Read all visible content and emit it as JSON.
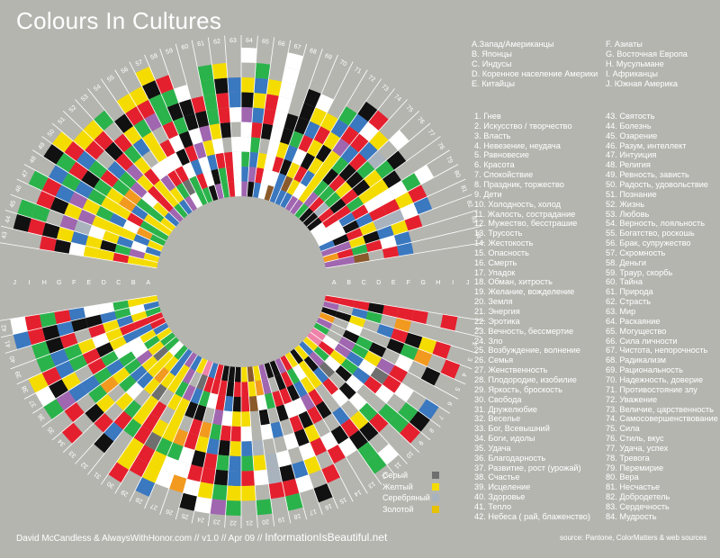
{
  "title": "Colours In Cultures",
  "cultures": [
    "A.Запад/Американцы",
    "B. Японцы",
    "C. Индусы",
    "D. Коренное население Америки",
    "E. Китайцы",
    "F. Азиаты",
    "G. Восточная Европа",
    "H.  Мусульмане",
    "I.   Африканцы",
    "J. Южная Америка"
  ],
  "culture_letters": [
    "A",
    "B",
    "C",
    "D",
    "E",
    "F",
    "G",
    "H",
    "I",
    "J"
  ],
  "meanings": [
    "1. Гнев",
    "2. Искусство / творчество",
    "3. Власть",
    "4. Невезение, неудача",
    "5. Равновесие",
    "6. Красота",
    "7. Спокойствие",
    "8. Праздник, торжество",
    "9. Дети",
    "10. Холодность, холод",
    "11. Жалость, сострадание",
    "12. Мужество, бесстрашие",
    "13. Трусость",
    "14. Жестокость",
    "15. Опасность",
    "16. Смерть",
    "17. Упадок",
    "18. Обман, хитрость",
    "19. Желание, вожделение",
    "20. Земля",
    "21. Энергия",
    "22. Эротика",
    "23. Вечность, бессмертие",
    "24. Зло",
    "25. Возбуждение, волнение",
    "26. Семья",
    "27. Женственность",
    "28. Плодородие, изобилие",
    "29. Яркость, броскость",
    "30. Свобода",
    "31. Дружелюбие",
    "32. Веселье",
    "33. Бог, Всевышний",
    "34. Боги, идолы",
    "35. Удача",
    "36. Благодарность",
    "37. Развитие, рост (урожай)",
    "38. Счастье",
    "39. Исцеление",
    "40. Здоровье",
    "41. Тепло",
    "42. Небеса ( рай, блаженство)",
    "43. Святость",
    "44. Болезнь",
    "45. Озарение",
    "46. Разум, интеллект",
    "47. Интуиция",
    "48. Религия",
    "49. Ревность, зависть",
    "50. Радость, удовольствие",
    "51. Познание",
    "52. Жизнь",
    "53. Любовь",
    "54. Верность, лояльность",
    "55. Богатство, роскошь",
    "56. Брак, супружество",
    "57. Скромность",
    "58. Деньги",
    "59. Траур, скорбь",
    "60. Тайна",
    "61. Природа",
    "62. Страсть",
    "63. Мир",
    "64. Раскаяние",
    "65.  Могущество",
    "66. Сила личности",
    "67. Чистота, непорочность",
    "68. Радикализм",
    "69. Рациональность",
    "70. Надежность, доверие",
    "71. Противостояние злу",
    "72. Уважение",
    "73. Величие, царственность",
    "74. Самосовершенствование",
    "75. Сила",
    "76. Стиль, вкус",
    "77. Удача, успех",
    "78. Тревога",
    "79. Перемирие",
    "80. Вера",
    "81. Несчастье",
    "82. Добродетель",
    "83. Сердечность",
    "84. Мудрость"
  ],
  "legend": [
    {
      "label": "Серый",
      "color": "#6f6f6f"
    },
    {
      "label": "Желтый",
      "color": "#f5dc00"
    },
    {
      "label": "Серебряный",
      "color": "#a9b3bd"
    },
    {
      "label": "Золотой",
      "color": "#e8c200"
    }
  ],
  "footer": {
    "credit": "David McCandless & AlwaysWithHonor.com",
    "version": " // v1.0 // Apr 09 // ",
    "brand": "InformationIsBeautiful.net",
    "source": "source: Pantone, ColorMatters & web sources"
  },
  "chart_data": {
    "type": "radial heatmap",
    "title": "Colours In Cultures",
    "segments": 84,
    "rings": [
      "A",
      "B",
      "C",
      "D",
      "E",
      "F",
      "G",
      "H",
      "I",
      "J"
    ],
    "palette": {
      "R": "#e5202e",
      "Y": "#f5dc00",
      "G": "#2bb34b",
      "B": "#3a78c0",
      "K": "#111111",
      "W": "#ffffff",
      "P": "#a066b0",
      "O": "#f29a1f",
      "N": "#8b5a2b",
      "S": "#a9b3bd",
      "Gr": "#6f6f6f",
      "Pk": "#ee82a8",
      "Au": "#e8c200",
      "Tq": "#29b2b8"
    },
    "cells": {
      "1": {
        "A": "R",
        "B": "R",
        "C": "R",
        "D": "K",
        "E": "R",
        "F": "R",
        "G": "R",
        "I": "R"
      },
      "2": {
        "A": "P",
        "C": "B",
        "D": "G",
        "F": "O"
      },
      "3": {
        "A": "K",
        "B": "K",
        "C": "Y",
        "E": "B",
        "F": "R",
        "G": "K",
        "H": "Y",
        "I": "R"
      },
      "4": {
        "A": "O",
        "C": "W",
        "F": "K",
        "G": "G",
        "H": "O",
        "J": "R"
      },
      "5": {
        "A": "P",
        "C": "K",
        "D": "G",
        "E": "K",
        "G": "W",
        "I": "K"
      },
      "6": {
        "A": "G",
        "C": "P",
        "D": "G",
        "E": "Y",
        "F": "P",
        "G": "R"
      },
      "7": {
        "A": "Pk",
        "B": "W",
        "C": "P",
        "D": "B",
        "E": "W",
        "F": "Gr",
        "G": "R",
        "H": "W",
        "J": "B"
      },
      "8": {
        "A": "Pk",
        "B": "R",
        "C": "Y",
        "D": "G",
        "E": "B",
        "F": "R",
        "G": "W",
        "I": "G",
        "J": "K"
      },
      "9": {
        "A": "Y",
        "B": "G",
        "C": "W",
        "D": "K",
        "E": "W",
        "H": "G",
        "I": "G",
        "J": "R"
      },
      "10": {
        "A": "B",
        "B": "P",
        "C": "Gr",
        "E": "K",
        "F": "W",
        "G": "G",
        "H": "R"
      },
      "11": {
        "A": "Y",
        "B": "K",
        "C": "B",
        "D": "R",
        "E": "W",
        "G": "Y",
        "H": "K",
        "J": "W"
      },
      "12": {
        "A": "K",
        "B": "Y",
        "C": "Y",
        "F": "B",
        "G": "R",
        "H": "K",
        "I": "G",
        "J": "G"
      },
      "13": {
        "A": "Y",
        "B": "W",
        "C": "Y",
        "D": "R",
        "E": "K",
        "G": "K",
        "H": "W"
      },
      "14": {
        "A": "R",
        "B": "G",
        "C": "B",
        "D": "P",
        "E": "R",
        "G": "W",
        "H": "R"
      },
      "15": {
        "A": "P",
        "B": "R",
        "C": "K",
        "D": "W",
        "E": "K",
        "F": "Y",
        "G": "R",
        "I": "R"
      },
      "16": {
        "A": "K",
        "B": "K",
        "C": "R",
        "D": "W",
        "E": "R",
        "F": "K",
        "G": "W",
        "H": "Y",
        "J": "K"
      },
      "17": {
        "A": "K",
        "C": "R",
        "D": "K",
        "F": "W",
        "H": "B",
        "I": "W"
      },
      "18": {
        "A": "P",
        "B": "P",
        "C": "G",
        "E": "B",
        "G": "W",
        "H": "K",
        "I": "R",
        "J": "G"
      },
      "19": {
        "A": "Y",
        "B": "O",
        "C": "W",
        "D": "K",
        "E": "W",
        "G": "S",
        "H": "S",
        "I": "R"
      },
      "20": {
        "A": "N",
        "B": "Y",
        "C": "N",
        "F": "S",
        "G": "Y",
        "H": "W",
        "J": "G"
      },
      "21": {
        "A": "Y",
        "B": "R",
        "C": "R",
        "D": "Y",
        "E": "W",
        "F": "B",
        "G": "G",
        "H": "R",
        "I": "Y"
      },
      "22": {
        "A": "K",
        "B": "R",
        "C": "K",
        "D": "Y",
        "E": "R",
        "F": "Y",
        "G": "B",
        "H": "B",
        "I": "Y",
        "J": "G"
      },
      "23": {
        "A": "K",
        "B": "K",
        "C": "B",
        "D": "W",
        "E": "R",
        "F": "K",
        "G": "G",
        "H": "K",
        "I": "G",
        "J": "P"
      },
      "24": {
        "A": "K",
        "B": "R",
        "C": "R",
        "D": "P",
        "E": "G",
        "F": "B",
        "G": "R",
        "H": "R",
        "I": "Y",
        "J": "W"
      },
      "25": {
        "A": "R",
        "B": "R",
        "C": "W",
        "E": "O",
        "F": "Y",
        "G": "K",
        "H": "R",
        "I": "W",
        "J": "K"
      },
      "26": {
        "A": "B",
        "B": "R",
        "C": "G",
        "D": "K",
        "E": "R",
        "F": "R",
        "G": "W",
        "H": "W",
        "I": "O"
      },
      "27": {
        "A": "Pk",
        "B": "Gr",
        "C": "B",
        "D": "K",
        "F": "O",
        "G": "G",
        "H": "W",
        "I": "W"
      },
      "28": {
        "A": "Y",
        "C": "P",
        "D": "Y",
        "E": "Y",
        "F": "Y",
        "G": "G",
        "H": "Y",
        "I": "Y",
        "J": "B"
      },
      "29": {
        "A": "B",
        "B": "P",
        "C": "G",
        "D": "Y",
        "F": "Y",
        "G": "Gr",
        "H": "R",
        "I": "R"
      },
      "30": {
        "A": "P",
        "B": "Y",
        "C": "Y",
        "E": "R",
        "F": "R",
        "G": "R",
        "H": "Y",
        "I": "Y",
        "J": "R"
      },
      "31": {
        "A": "B",
        "B": "B",
        "C": "Y",
        "D": "Gr",
        "E": "Y",
        "F": "Y",
        "G": "G"
      },
      "32": {
        "A": "G",
        "B": "Y",
        "C": "O",
        "D": "Y",
        "F": "G",
        "G": "R",
        "H": "B",
        "I": "K"
      },
      "33": {
        "A": "W",
        "B": "Y",
        "C": "Y",
        "D": "B",
        "E": "W",
        "F": "Y",
        "H": "R"
      },
      "34": {
        "A": "G",
        "B": "Gr",
        "C": "Y",
        "D": "B",
        "E": "G",
        "G": "Y",
        "H": "K",
        "J": "R"
      },
      "35": {
        "A": "G",
        "B": "Y",
        "C": "P",
        "D": "G",
        "E": "Y",
        "F": "O",
        "G": "G",
        "I": "R"
      },
      "36": {
        "A": "Y",
        "B": "G",
        "C": "W",
        "D": "G",
        "E": "B",
        "F": "G",
        "G": "B",
        "H": "B",
        "I": "P",
        "J": "G"
      },
      "37": {
        "A": "B",
        "B": "Y",
        "C": "W",
        "D": "W",
        "E": "G",
        "F": "R",
        "H": "Y",
        "I": "K",
        "J": "W"
      },
      "38": {
        "A": "R",
        "B": "B",
        "C": "B",
        "D": "Y",
        "E": "K",
        "F": "R",
        "G": "G",
        "H": "B",
        "I": "R",
        "J": "Y"
      },
      "39": {
        "A": "R",
        "B": "R",
        "C": "R",
        "D": "Y",
        "E": "W",
        "F": "Y",
        "G": "G",
        "H": "B",
        "I": "G"
      },
      "40": {
        "A": "G",
        "B": "Y",
        "C": "B",
        "D": "Y",
        "E": "R",
        "G": "R",
        "H": "K",
        "I": "G"
      },
      "41": {
        "A": "B",
        "B": "W",
        "C": "G",
        "D": "B",
        "E": "K",
        "F": "K",
        "G": "B",
        "H": "K",
        "I": "R",
        "J": "B"
      },
      "42": {
        "A": "Y",
        "B": "Y",
        "C": "G",
        "D": "W",
        "E": "W",
        "F": "B",
        "G": "R",
        "H": "G",
        "I": "R",
        "J": "W"
      },
      "43": {
        "A": "Y",
        "B": "Y",
        "C": "R",
        "D": "Y",
        "E": "Y",
        "F": "W",
        "G": "K",
        "H": "R"
      },
      "44": {
        "A": "Y",
        "B": "P",
        "C": "G",
        "D": "K",
        "E": "Y",
        "F": "B",
        "G": "Y",
        "H": "K",
        "I": "R",
        "J": "K"
      },
      "45": {
        "A": "B",
        "B": "W",
        "C": "B",
        "D": "Y",
        "E": "W",
        "F": "S",
        "G": "P",
        "I": "G",
        "J": "G"
      },
      "46": {
        "A": "Y",
        "B": "B",
        "C": "Y",
        "D": "Y",
        "E": "Y",
        "F": "P",
        "G": "Y",
        "H": "K",
        "I": "R"
      },
      "47": {
        "A": "G",
        "B": "O",
        "C": "W",
        "D": "B",
        "E": "G",
        "F": "Y",
        "G": "P",
        "H": "B",
        "I": "R",
        "J": "G"
      },
      "48": {
        "A": "G",
        "B": "G",
        "C": "R",
        "D": "Y",
        "E": "Y",
        "F": "G",
        "G": "B",
        "H": "G",
        "I": "B"
      },
      "49": {
        "A": "Y",
        "B": "Y",
        "C": "B",
        "D": "O",
        "E": "Y",
        "F": "G",
        "G": "K",
        "H": "R",
        "I": "G",
        "J": "K"
      },
      "50": {
        "A": "Y",
        "B": "G",
        "C": "G",
        "D": "O",
        "E": "G",
        "F": "R",
        "G": "G",
        "H": "B",
        "I": "R",
        "J": "Y"
      },
      "51": {
        "A": "B",
        "B": "Y",
        "C": "W",
        "D": "P",
        "E": "G",
        "F": "B",
        "H": "R",
        "I": "Y"
      },
      "52": {
        "A": "P",
        "B": "R",
        "C": "R",
        "D": "Y",
        "E": "P",
        "F": "R",
        "G": "K",
        "H": "R",
        "I": "Y"
      },
      "53": {
        "A": "G",
        "B": "Y",
        "C": "Y",
        "D": "R",
        "E": "Y",
        "F": "G",
        "G": "R",
        "I": "G"
      },
      "54": {
        "A": "B",
        "B": "Y",
        "C": "P",
        "D": "W",
        "F": "B",
        "G": "Y",
        "H": "K"
      },
      "55": {
        "A": "P",
        "B": "G",
        "C": "R",
        "D": "W",
        "E": "Y",
        "F": "Y",
        "G": "G",
        "H": "R",
        "I": "Y"
      },
      "56": {
        "A": "W",
        "B": "Gr",
        "C": "R",
        "D": "W",
        "E": "R",
        "G": "P",
        "H": "R",
        "I": "Y"
      },
      "57": {
        "A": "G",
        "B": "G",
        "C": "W",
        "D": "K",
        "E": "W",
        "F": "R",
        "G": "G",
        "H": "G",
        "I": "K",
        "J": "Y"
      },
      "58": {
        "A": "G",
        "B": "R",
        "C": "B",
        "D": "R",
        "E": "K",
        "F": "G",
        "G": "K",
        "H": "G",
        "I": "R"
      },
      "59": {
        "A": "K",
        "B": "W",
        "C": "W",
        "D": "P",
        "E": "W",
        "F": "K",
        "G": "K",
        "H": "W"
      },
      "60": {
        "A": "P",
        "B": "K",
        "C": "B",
        "D": "Y",
        "E": "P",
        "F": "K",
        "G": "R"
      },
      "61": {
        "A": "G",
        "B": "G",
        "C": "R",
        "D": "W",
        "E": "Y",
        "F": "G",
        "G": "G",
        "H": "G",
        "I": "G"
      },
      "62": {
        "A": "R",
        "B": "R",
        "C": "R",
        "E": "K",
        "F": "R",
        "G": "R",
        "H": "K",
        "I": "Y"
      },
      "63": {
        "A": "W",
        "B": "W",
        "C": "W",
        "D": "W",
        "F": "W",
        "G": "B",
        "H": "B"
      },
      "64": {
        "A": "P",
        "B": "B",
        "C": "G",
        "D": "W",
        "E": "W",
        "F": "P",
        "G": "K",
        "H": "Y",
        "J": "W"
      },
      "65": {
        "A": "K",
        "B": "P",
        "C": "B",
        "D": "G",
        "E": "R",
        "F": "B",
        "G": "Y",
        "H": "B",
        "I": "G"
      },
      "66": {
        "A": "B",
        "B": "R",
        "C": "Y",
        "E": "K",
        "F": "R",
        "G": "R",
        "H": "Y"
      },
      "67": {
        "A": "W",
        "B": "W",
        "C": "W",
        "D": "W",
        "E": "W",
        "F": "W",
        "G": "W",
        "H": "W",
        "I": "W",
        "J": "W"
      },
      "68": {
        "A": "N",
        "B": "W",
        "C": "R",
        "D": "Y",
        "E": "K",
        "F": "K"
      },
      "69": {
        "A": "B",
        "B": "B",
        "C": "K",
        "D": "B",
        "E": "G",
        "F": "K",
        "G": "K",
        "H": "K"
      },
      "70": {
        "A": "B",
        "B": "N",
        "C": "Y",
        "D": "W",
        "E": "R",
        "F": "B",
        "G": "Y",
        "H": "W"
      },
      "71": {
        "A": "B",
        "B": "Y",
        "C": "R",
        "D": "K",
        "E": "Y",
        "F": "R",
        "G": "Y"
      },
      "72": {
        "A": "P",
        "B": "W",
        "C": "B",
        "D": "Y",
        "E": "K",
        "F": "Y",
        "G": "B",
        "H": "G"
      },
      "73": {
        "A": "P",
        "B": "Y",
        "C": "Y",
        "D": "Y",
        "E": "Y",
        "F": "P",
        "G": "R",
        "H": "B",
        "I": "K"
      },
      "74": {
        "A": "G",
        "B": "P",
        "C": "G",
        "D": "K",
        "E": "G",
        "F": "B",
        "G": "R",
        "H": "W",
        "I": "R"
      },
      "75": {
        "A": "K",
        "B": "R",
        "C": "G",
        "D": "R",
        "E": "K",
        "F": "R",
        "G": "B",
        "H": "Y"
      },
      "76": {
        "A": "K",
        "B": "S",
        "C": "G",
        "D": "Y",
        "E": "K",
        "F": "G",
        "G": "S",
        "I": "W"
      },
      "77": {
        "A": "K",
        "B": "R",
        "C": "K",
        "D": "R",
        "E": "K",
        "F": "Y",
        "G": "G",
        "H": "K"
      },
      "78": {
        "A": "W",
        "B": "R",
        "C": "R",
        "D": "G",
        "E": "Y",
        "F": "Y",
        "G": "K"
      },
      "79": {
        "A": "W",
        "B": "W",
        "C": "B",
        "D": "R",
        "E": "W",
        "F": "W",
        "G": "W",
        "H": "G",
        "I": "W"
      },
      "80": {
        "A": "W",
        "B": "W",
        "C": "K",
        "D": "B",
        "E": "R",
        "F": "R",
        "G": "Y",
        "H": "R"
      },
      "81": {
        "A": "B",
        "B": "K",
        "C": "R",
        "D": "Y",
        "E": "S",
        "F": "S",
        "G": "W",
        "H": "B"
      },
      "82": {
        "A": "P",
        "B": "P",
        "C": "Y",
        "D": "K",
        "E": "B",
        "F": "Y",
        "G": "R"
      },
      "83": {
        "A": "O",
        "B": "R",
        "C": "G",
        "D": "R",
        "E": "W",
        "F": "B"
      },
      "84": {
        "A": "P",
        "B": "P",
        "C": "N",
        "E": "R",
        "F": "B"
      }
    }
  }
}
